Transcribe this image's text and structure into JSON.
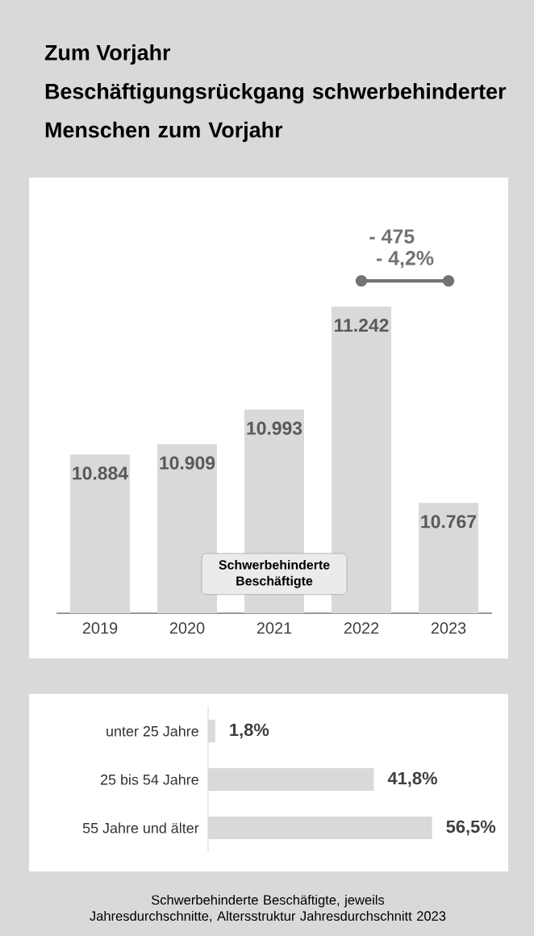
{
  "chart_data": [
    {
      "type": "bar",
      "title": "Zum Vorjahr",
      "subtitle": "Beschäftigungsrückgang schwerbehinderter Menschen zum Vorjahr",
      "categories": [
        "2019",
        "2020",
        "2021",
        "2022",
        "2023"
      ],
      "series": [
        {
          "name": "Schwerbehinderte Beschäftigte",
          "color": "#d9d9d9",
          "values": [
            10884,
            10909,
            10993,
            11242,
            10767
          ],
          "value_labels": [
            "10.884",
            "10.909",
            "10.993",
            "11.242",
            "10.767"
          ]
        }
      ],
      "ylim": [
        10500,
        11242
      ],
      "tick_labels": "x",
      "legend": "bottom",
      "annotations": [
        "- 475",
        "- 4,2%"
      ]
    },
    {
      "type": "bar",
      "orientation": "horizontal",
      "categories": [
        "unter 25 Jahre",
        "25 bis 54 Jahre",
        "55 Jahre und älter"
      ],
      "values": [
        1.8,
        41.8,
        56.5
      ],
      "value_labels": [
        "1,8%",
        "41,8%",
        "56,5%"
      ],
      "color": "#d9d9d9",
      "tick_labels": "y",
      "annotations": [
        "Schwerbehinderte Beschäftigte, jeweils Jahresdurchschnitte, Altersstruktur Jahresdurchschnitt 2023"
      ]
    }
  ]
}
